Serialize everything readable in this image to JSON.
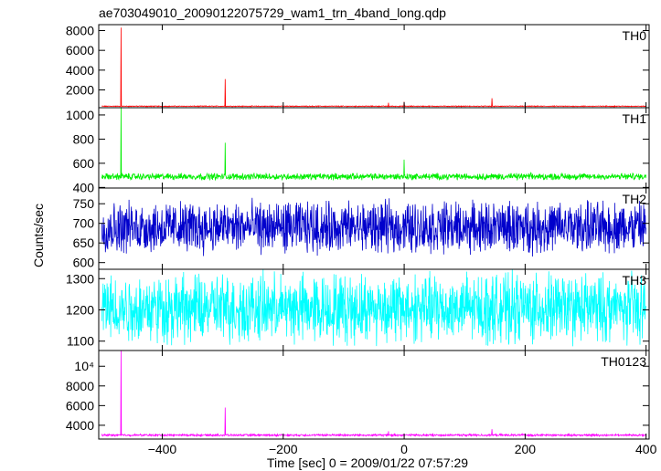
{
  "chart_data": {
    "type": "line",
    "title": "ae703049010_20090122075729_wam1_trn_4band_long.qdp",
    "xlabel": "Time [sec] 0 = 2009/01/22 07:57:29",
    "ylabel": "Counts/sec",
    "xlim": [
      -505,
      405
    ],
    "x_ticks": [
      -400,
      -200,
      0,
      200,
      400
    ],
    "x_tick_labels": [
      "−400",
      "−200",
      "0",
      "200",
      "400"
    ],
    "panels": [
      {
        "name": "TH0",
        "color": "#ff0000",
        "ylim": [
          200,
          8600
        ],
        "y_ticks": [
          2000,
          4000,
          6000,
          8000
        ],
        "y_tick_labels": [
          "2000",
          "4000",
          "6000",
          "8000"
        ],
        "baseline": 350,
        "noise": 60,
        "spikes": [
          [
            -468,
            8300
          ],
          [
            -296,
            3100
          ],
          [
            -26,
            700
          ],
          [
            0,
            800
          ],
          [
            145,
            1150
          ]
        ]
      },
      {
        "name": "TH1",
        "color": "#00ee00",
        "ylim": [
          395,
          1060
        ],
        "y_ticks": [
          400,
          600,
          800,
          1000
        ],
        "y_tick_labels": [
          "400",
          "600",
          "800",
          "1000"
        ],
        "baseline": 490,
        "noise": 40,
        "spikes": [
          [
            -468,
            1060
          ],
          [
            -296,
            770
          ],
          [
            0,
            630
          ]
        ]
      },
      {
        "name": "TH2",
        "color": "#0000cc",
        "ylim": [
          583,
          790
        ],
        "y_ticks": [
          600,
          650,
          700,
          750
        ],
        "y_tick_labels": [
          "600",
          "650",
          "700",
          "750"
        ],
        "baseline": 690,
        "noise": 95,
        "spikes": []
      },
      {
        "name": "TH3",
        "color": "#00ffff",
        "ylim": [
          1070,
          1330
        ],
        "y_ticks": [
          1100,
          1200,
          1300
        ],
        "y_tick_labels": [
          "1100",
          "1200",
          "1300"
        ],
        "baseline": 1205,
        "noise": 160,
        "spikes": []
      },
      {
        "name": "TH0123",
        "color": "#ff00ff",
        "ylim": [
          2600,
          11600
        ],
        "y_ticks": [
          4000,
          6000,
          8000,
          10000
        ],
        "y_tick_labels": [
          "4000",
          "6000",
          "8000",
          "10⁴"
        ],
        "baseline": 3000,
        "noise": 150,
        "spikes": [
          [
            -468,
            11600
          ],
          [
            -296,
            5800
          ],
          [
            -26,
            3400
          ],
          [
            145,
            3600
          ]
        ]
      }
    ]
  }
}
